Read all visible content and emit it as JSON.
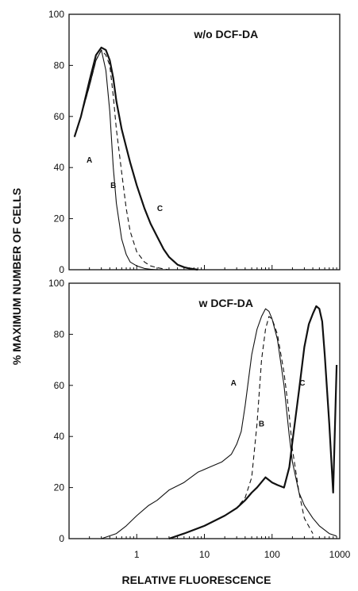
{
  "chart_data": {
    "type": "line",
    "ylabel": "% MAXIMUM NUMBER OF CELLS",
    "xlabel": "RELATIVE FLUORESCENCE",
    "x_scale": "log",
    "xlim": [
      0.1,
      1000
    ],
    "x_ticks": [
      "1",
      "10",
      "100",
      "1000"
    ],
    "panels": [
      {
        "title": "w/o DCF-DA",
        "ylim": [
          0,
          100
        ],
        "y_ticks": [
          "0",
          "20",
          "40",
          "60",
          "80",
          "100"
        ],
        "series": [
          {
            "name": "A",
            "style": "thin-solid",
            "label_at": [
              0.2,
              42
            ],
            "x": [
              0.12,
              0.15,
              0.2,
              0.25,
              0.3,
              0.35,
              0.4,
              0.45,
              0.5,
              0.6,
              0.7,
              0.8,
              1.0,
              1.3,
              1.6,
              2.0
            ],
            "y": [
              52,
              60,
              72,
              82,
              86,
              78,
              62,
              40,
              26,
              12,
              6,
              3,
              1.5,
              0.5,
              0.2,
              0
            ]
          },
          {
            "name": "B",
            "style": "dashed",
            "label_at": [
              0.45,
              32
            ],
            "x": [
              0.12,
              0.15,
              0.2,
              0.25,
              0.3,
              0.35,
              0.4,
              0.45,
              0.5,
              0.6,
              0.7,
              0.8,
              1.0,
              1.3,
              1.6,
              2.0,
              2.5,
              3.0
            ],
            "y": [
              52,
              60,
              72,
              82,
              86,
              84,
              80,
              68,
              55,
              38,
              24,
              15,
              7,
              3,
              1.5,
              0.8,
              0.3,
              0
            ]
          },
          {
            "name": "C",
            "style": "thick-solid",
            "label_at": [
              2.2,
              23
            ],
            "x": [
              0.12,
              0.15,
              0.2,
              0.25,
              0.3,
              0.35,
              0.4,
              0.45,
              0.5,
              0.6,
              0.7,
              0.8,
              1.0,
              1.3,
              1.6,
              2.0,
              2.5,
              3.0,
              4.0,
              5.0,
              6.0,
              8.0
            ],
            "y": [
              52,
              60,
              74,
              84,
              87,
              86,
              82,
              75,
              66,
              55,
              48,
              42,
              33,
              24,
              18,
              13,
              8,
              5,
              2,
              1,
              0.5,
              0
            ]
          }
        ]
      },
      {
        "title": "w DCF-DA",
        "ylim": [
          0,
          100
        ],
        "y_ticks": [
          "0",
          "20",
          "40",
          "60",
          "80",
          "100"
        ],
        "series": [
          {
            "name": "A",
            "style": "thin-solid",
            "label_at": [
              27,
              60
            ],
            "x": [
              0.3,
              0.5,
              0.7,
              1.0,
              1.5,
              2.0,
              3.0,
              5.0,
              8.0,
              12,
              18,
              25,
              30,
              35,
              40,
              50,
              60,
              70,
              80,
              90,
              100,
              120,
              150,
              180,
              200,
              250,
              300,
              400,
              500,
              700,
              900
            ],
            "y": [
              0,
              2,
              5,
              9,
              13,
              15,
              19,
              22,
              26,
              28,
              30,
              33,
              37,
              42,
              52,
              72,
              82,
              87,
              90,
              89,
              86,
              78,
              60,
              40,
              30,
              18,
              13,
              8,
              5,
              2,
              1
            ]
          },
          {
            "name": "B",
            "style": "dashed",
            "label_at": [
              70,
              44
            ],
            "x": [
              3,
              5,
              10,
              20,
              30,
              40,
              50,
              60,
              70,
              80,
              90,
              100,
              120,
              150,
              180,
              200,
              250,
              300,
              400
            ],
            "y": [
              0,
              2,
              5,
              9,
              12,
              16,
              24,
              45,
              70,
              82,
              87,
              86,
              80,
              65,
              48,
              35,
              18,
              8,
              2
            ]
          },
          {
            "name": "C",
            "style": "thick-solid",
            "label_at": [
              280,
              60
            ],
            "x": [
              3,
              5,
              10,
              20,
              30,
              40,
              50,
              60,
              80,
              100,
              120,
              150,
              180,
              200,
              250,
              300,
              350,
              400,
              450,
              500,
              550,
              600,
              700,
              800,
              900
            ],
            "y": [
              0,
              2,
              5,
              9,
              12,
              15,
              18,
              20,
              24,
              22,
              21,
              20,
              28,
              38,
              58,
              75,
              84,
              88,
              91,
              90,
              85,
              72,
              45,
              18,
              68
            ]
          }
        ]
      }
    ]
  }
}
